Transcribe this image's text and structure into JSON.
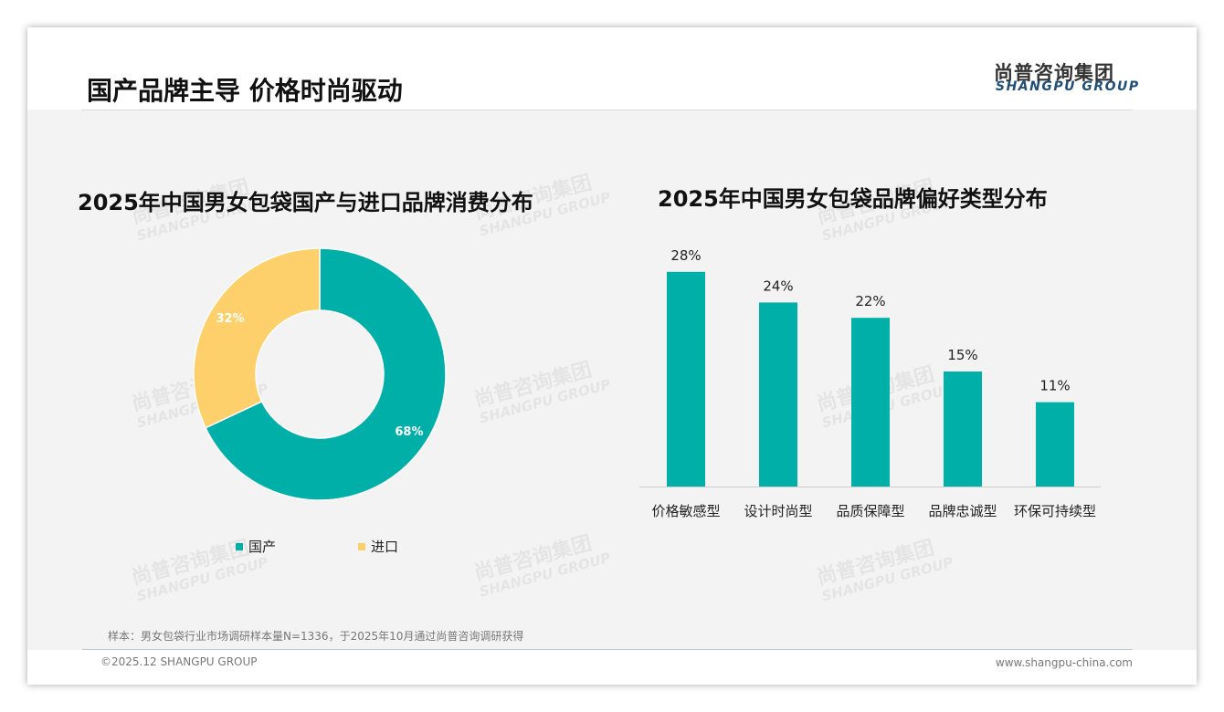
{
  "header": {
    "title": "国产品牌主导 价格时尚驱动",
    "logo_cn": "尚普咨询集团",
    "logo_en": "SHANGPU GROUP"
  },
  "watermark": {
    "cn": "尚普咨询集团",
    "en": "SHANGPU GROUP"
  },
  "chart_data": [
    {
      "type": "pie",
      "title": "2025年中国男女包袋国产与进口品牌消费分布",
      "categories": [
        "国产",
        "进口"
      ],
      "values": [
        68,
        32
      ],
      "labels": [
        "68%",
        "32%"
      ],
      "colors": [
        "#00b0a8",
        "#fdd06b"
      ],
      "legend": "bottom",
      "donut": true
    },
    {
      "type": "bar",
      "title": "2025年中国男女包袋品牌偏好类型分布",
      "categories": [
        "价格敏感型",
        "设计时尚型",
        "品质保障型",
        "品牌忠诚型",
        "环保可持续型"
      ],
      "values": [
        28,
        24,
        22,
        15,
        11
      ],
      "labels": [
        "28%",
        "24%",
        "22%",
        "15%",
        "11%"
      ],
      "color": "#00b0a8",
      "ylim": [
        0,
        30
      ]
    }
  ],
  "footer": {
    "note": "样本：男女包袋行业市场调研样本量N=1336，于2025年10月通过尚普咨询调研获得",
    "copyright": "©2025.12 SHANGPU GROUP",
    "website": "www.shangpu-china.com"
  }
}
